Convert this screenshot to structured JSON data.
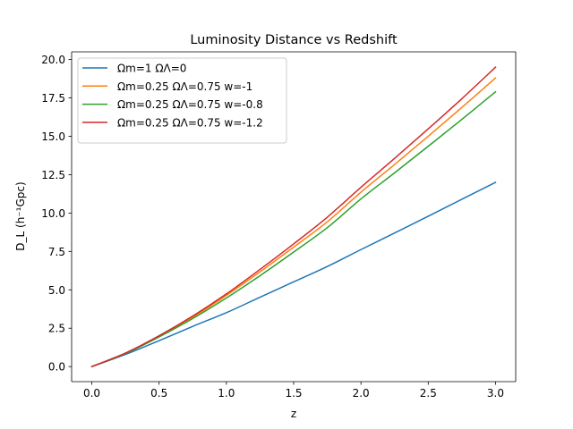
{
  "chart_data": {
    "type": "line",
    "title": "Luminosity Distance vs Redshift",
    "xlabel": "z",
    "ylabel": "D_L (h⁻¹Gpc)",
    "xlim": [
      -0.15,
      3.15
    ],
    "ylim": [
      -0.98,
      20.5
    ],
    "xticks": [
      0.0,
      0.5,
      1.0,
      1.5,
      2.0,
      2.5,
      3.0
    ],
    "xtick_labels": [
      "0.0",
      "0.5",
      "1.0",
      "1.5",
      "2.0",
      "2.5",
      "3.0"
    ],
    "yticks": [
      0.0,
      2.5,
      5.0,
      7.5,
      10.0,
      12.5,
      15.0,
      17.5,
      20.0
    ],
    "ytick_labels": [
      "0.0",
      "2.5",
      "5.0",
      "7.5",
      "10.0",
      "12.5",
      "15.0",
      "17.5",
      "20.0"
    ],
    "grid": false,
    "legend_position": "top-left",
    "x": [
      0.0,
      0.25,
      0.5,
      0.75,
      1.0,
      1.25,
      1.5,
      1.75,
      2.0,
      2.25,
      2.5,
      2.75,
      3.0
    ],
    "series": [
      {
        "name": "Ωm=1 ΩΛ=0",
        "color": "#1f77b4",
        "values": [
          0.0,
          0.79,
          1.69,
          2.62,
          3.51,
          4.52,
          5.52,
          6.52,
          7.62,
          8.7,
          9.79,
          10.9,
          12.0
        ]
      },
      {
        "name": "Ωm=0.25 ΩΛ=0.75 w=-1",
        "color": "#ff7f0e",
        "values": [
          0.0,
          0.87,
          1.98,
          3.22,
          4.64,
          6.17,
          7.78,
          9.43,
          11.36,
          13.16,
          15.0,
          16.88,
          18.8
        ]
      },
      {
        "name": "Ωm=0.25 ΩΛ=0.75 w=-0.8",
        "color": "#2ca02c",
        "values": [
          0.0,
          0.85,
          1.93,
          3.13,
          4.47,
          5.92,
          7.46,
          9.05,
          10.92,
          12.62,
          14.35,
          16.1,
          17.9
        ]
      },
      {
        "name": "Ωm=0.25 ΩΛ=0.75 w=-1.2",
        "color": "#d62728",
        "values": [
          0.0,
          0.88,
          2.01,
          3.29,
          4.73,
          6.33,
          7.99,
          9.73,
          11.68,
          13.56,
          15.48,
          17.45,
          19.5
        ]
      }
    ]
  }
}
